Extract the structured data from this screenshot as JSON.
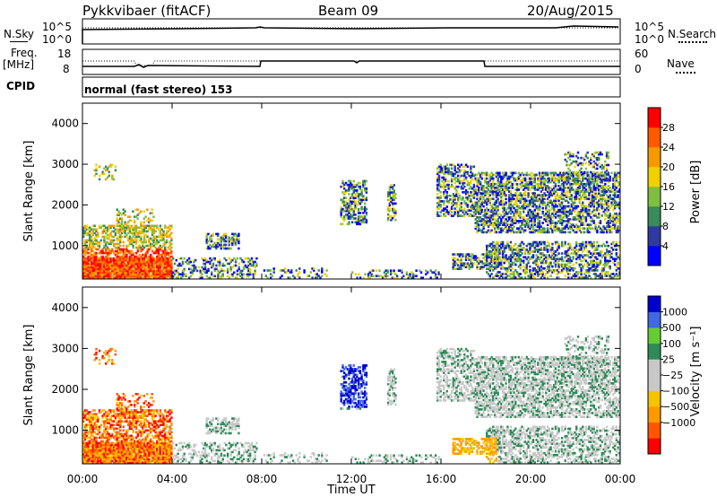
{
  "header": {
    "radar": "Pykkvibaer (fitACF)",
    "beam": "Beam 09",
    "date": "20/Aug/2015"
  },
  "side_labels": {
    "nsky": "N.Sky",
    "nsearch": "N.Search",
    "freq_line1": "Freq.",
    "freq_line2": "[MHz]",
    "nave": "Nave",
    "cpid": "CPID"
  },
  "cpid_text": "normal (fast stereo) 153",
  "noise_panel": {
    "left_ticks": [
      "10^5",
      "10^0"
    ],
    "right_ticks": [
      "10^5",
      "10^0"
    ]
  },
  "freq_panel": {
    "left_ticks": [
      "18",
      "8"
    ],
    "right_ticks": [
      "60",
      "0"
    ]
  },
  "colors": {
    "power": [
      "#0000ff",
      "#2e3a9e",
      "#3a8a5a",
      "#7fbf3f",
      "#f0d000",
      "#f59a00",
      "#ff5a00",
      "#ff0000"
    ],
    "velocity": [
      "#ff0000",
      "#ff5500",
      "#ff9900",
      "#f5c400",
      "#c8c8c8",
      "#c8c8c8",
      "#2e8b57",
      "#66cc33",
      "#4169e1",
      "#0000cd"
    ]
  },
  "chart_data": [
    {
      "type": "heatmap",
      "name": "power",
      "ylabel": "Slant Range [km]",
      "ylim": [
        180,
        4500
      ],
      "yticks": [
        "1000",
        "2000",
        "3000",
        "4000"
      ],
      "colorbar_label": "Power [dB]",
      "colorbar_ticks": [
        "4",
        "8",
        "12",
        "16",
        "20",
        "24",
        "28"
      ],
      "clim": [
        0,
        32
      ]
    },
    {
      "type": "heatmap",
      "name": "velocity",
      "ylabel": "Slant Range [km]",
      "ylim": [
        180,
        4500
      ],
      "yticks": [
        "1000",
        "2000",
        "3000",
        "4000"
      ],
      "colorbar_label": "Velocity [m s⁻¹]",
      "colorbar_ticks": [
        "1000",
        "500",
        "100",
        "25",
        "−25",
        "−100",
        "−500",
        "−1000"
      ],
      "xlabel": "Time UT",
      "xticks": [
        "00:00",
        "04:00",
        "08:00",
        "12:00",
        "16:00",
        "20:00",
        "00:00"
      ]
    }
  ]
}
